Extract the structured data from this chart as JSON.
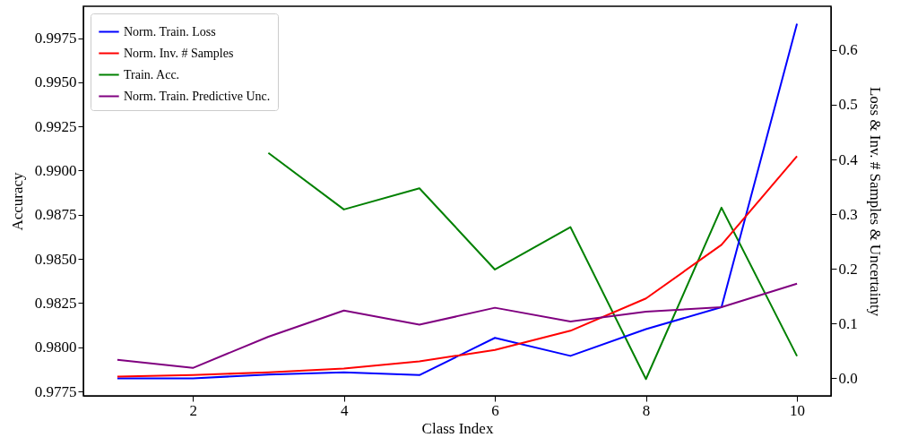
{
  "chart_data": {
    "type": "line",
    "x": [
      1,
      2,
      3,
      4,
      5,
      6,
      7,
      8,
      9,
      10
    ],
    "xlabel": "Class Index",
    "ylabel": "Accuracy",
    "y2label": "Loss & Inv. # Samples & Uncertainty",
    "series": [
      {
        "name": "Norm. Train. Loss",
        "color": "#0000ff",
        "axis": "y2",
        "values": [
          0.0,
          0.0,
          0.007,
          0.011,
          0.006,
          0.074,
          0.041,
          0.09,
          0.13,
          0.648
        ]
      },
      {
        "name": "Norm. Inv. # Samples",
        "color": "#ff0000",
        "axis": "y2",
        "values": [
          0.003,
          0.006,
          0.011,
          0.018,
          0.031,
          0.052,
          0.087,
          0.146,
          0.244,
          0.406
        ]
      },
      {
        "name": "Train. Acc.",
        "color": "#008000",
        "axis": "y",
        "values": [
          null,
          null,
          0.991,
          0.9878,
          0.989,
          0.9844,
          0.9868,
          0.9782,
          0.9879,
          0.9795
        ]
      },
      {
        "name": "Norm. Train. Predictive Unc.",
        "color": "#800080",
        "axis": "y2",
        "values": [
          0.034,
          0.019,
          0.076,
          0.124,
          0.098,
          0.129,
          0.104,
          0.122,
          0.13,
          0.173
        ]
      }
    ],
    "xlim": [
      0.55,
      10.45
    ],
    "xticks": [
      2,
      4,
      6,
      8,
      10
    ],
    "ylim": [
      0.97725,
      0.9993
    ],
    "yticks": [
      0.9775,
      {
        "value": 0.98,
        "label": "0.9800"
      },
      0.9825,
      {
        "value": 0.985,
        "label": "0.9850"
      },
      0.9875,
      {
        "value": 0.99,
        "label": "0.9900"
      },
      0.9925,
      {
        "value": 0.995,
        "label": "0.9950"
      },
      0.9975
    ],
    "y2lim": [
      -0.032,
      0.68
    ],
    "y2ticks": [
      {
        "value": 0,
        "label": "0.0"
      },
      0.1,
      0.2,
      0.3,
      0.4,
      0.5,
      0.6
    ],
    "grid": false,
    "legend": "top left",
    "marker": "none",
    "line_style": "solid"
  }
}
